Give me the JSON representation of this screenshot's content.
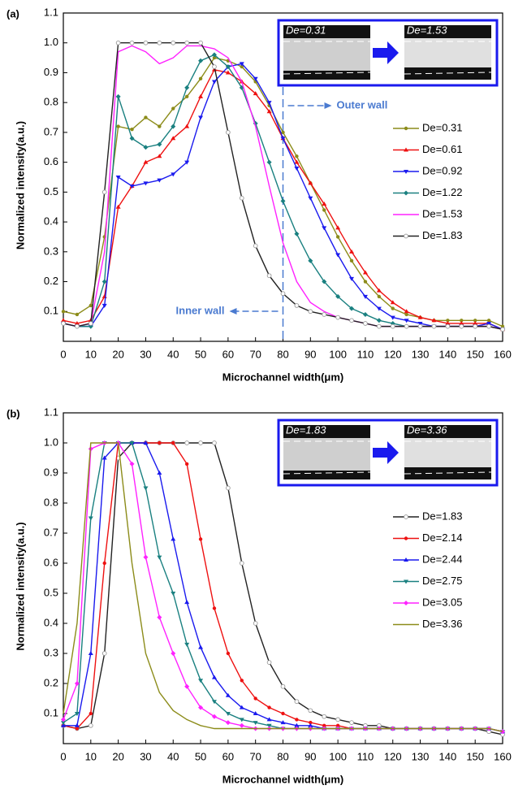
{
  "chart_data": [
    {
      "type": "line",
      "panel_label": "(a)",
      "xlabel": "Microchannel width(μm)",
      "ylabel": "Normalized intensity(a.u.)",
      "xlim": [
        0,
        160
      ],
      "xticks": [
        0,
        10,
        20,
        30,
        40,
        50,
        60,
        70,
        80,
        90,
        100,
        110,
        120,
        130,
        140,
        150,
        160
      ],
      "ylim": [
        0,
        1.1
      ],
      "yticks": [
        0.1,
        0.2,
        0.3,
        0.4,
        0.5,
        0.6,
        0.7,
        0.8,
        0.9,
        {
          "value": 1,
          "label": "1.0"
        },
        1.1
      ],
      "inset_labels": [
        "De=0.31",
        "De=1.53"
      ],
      "annotations": [
        "Outer wall",
        "Inner wall"
      ],
      "x": [
        0,
        5,
        10,
        15,
        20,
        25,
        30,
        35,
        40,
        45,
        50,
        55,
        60,
        65,
        70,
        75,
        80,
        85,
        90,
        95,
        100,
        105,
        110,
        115,
        120,
        125,
        130,
        135,
        140,
        145,
        150,
        155,
        160
      ],
      "series": [
        {
          "name": "De=0.31",
          "color": "#8c8c1a",
          "marker": "circle",
          "values": [
            0.1,
            0.09,
            0.12,
            0.35,
            0.72,
            0.71,
            0.75,
            0.72,
            0.78,
            0.82,
            0.88,
            0.95,
            0.94,
            0.92,
            0.87,
            0.79,
            0.7,
            0.62,
            0.53,
            0.44,
            0.35,
            0.27,
            0.2,
            0.15,
            0.11,
            0.09,
            0.08,
            0.07,
            0.07,
            0.07,
            0.07,
            0.07,
            0.05
          ]
        },
        {
          "name": "De=0.61",
          "color": "#ee1111",
          "marker": "triangle",
          "values": [
            0.07,
            0.06,
            0.07,
            0.15,
            0.45,
            0.52,
            0.6,
            0.62,
            0.68,
            0.72,
            0.82,
            0.91,
            0.9,
            0.87,
            0.83,
            0.77,
            0.68,
            0.6,
            0.53,
            0.46,
            0.38,
            0.3,
            0.23,
            0.17,
            0.13,
            0.1,
            0.08,
            0.07,
            0.06,
            0.06,
            0.06,
            0.06,
            0.04
          ]
        },
        {
          "name": "De=0.92",
          "color": "#1a1aee",
          "marker": "triangle-down",
          "values": [
            0.06,
            0.05,
            0.05,
            0.12,
            0.55,
            0.52,
            0.53,
            0.54,
            0.56,
            0.6,
            0.75,
            0.87,
            0.92,
            0.93,
            0.88,
            0.8,
            0.68,
            0.58,
            0.48,
            0.38,
            0.29,
            0.21,
            0.15,
            0.11,
            0.08,
            0.07,
            0.06,
            0.05,
            0.05,
            0.05,
            0.05,
            0.06,
            0.04
          ]
        },
        {
          "name": "De=1.22",
          "color": "#1a8080",
          "marker": "diamond",
          "values": [
            0.06,
            0.05,
            0.05,
            0.2,
            0.82,
            0.68,
            0.65,
            0.66,
            0.72,
            0.85,
            0.94,
            0.96,
            0.92,
            0.85,
            0.73,
            0.6,
            0.47,
            0.36,
            0.27,
            0.2,
            0.15,
            0.11,
            0.09,
            0.07,
            0.06,
            0.05,
            0.05,
            0.05,
            0.05,
            0.05,
            0.05,
            0.05,
            0.04
          ]
        },
        {
          "name": "De=1.53",
          "color": "#ff22ff",
          "marker": "none",
          "values": [
            0.06,
            0.05,
            0.06,
            0.3,
            0.97,
            0.99,
            0.97,
            0.93,
            0.95,
            0.99,
            0.99,
            0.98,
            0.95,
            0.87,
            0.72,
            0.52,
            0.33,
            0.2,
            0.13,
            0.1,
            0.08,
            0.07,
            0.06,
            0.05,
            0.05,
            0.05,
            0.05,
            0.05,
            0.05,
            0.05,
            0.05,
            0.05,
            0.04
          ]
        },
        {
          "name": "De=1.83",
          "color": "#222222",
          "marker": "open-circle",
          "values": [
            0.06,
            0.05,
            0.06,
            0.5,
            1.0,
            1.0,
            1.0,
            1.0,
            1.0,
            1.0,
            1.0,
            0.92,
            0.7,
            0.48,
            0.32,
            0.22,
            0.16,
            0.12,
            0.1,
            0.09,
            0.08,
            0.07,
            0.06,
            0.05,
            0.05,
            0.05,
            0.05,
            0.05,
            0.05,
            0.05,
            0.05,
            0.05,
            0.04
          ]
        }
      ]
    },
    {
      "type": "line",
      "panel_label": "(b)",
      "xlabel": "Microchannel width(μm)",
      "ylabel": "Normalized intensity(a.u.)",
      "xlim": [
        0,
        160
      ],
      "xticks": [
        0,
        10,
        20,
        30,
        40,
        50,
        60,
        70,
        80,
        90,
        100,
        110,
        120,
        130,
        140,
        150,
        160
      ],
      "ylim": [
        0,
        1.1
      ],
      "yticks": [
        0.1,
        0.2,
        0.3,
        0.4,
        0.5,
        0.6,
        0.7,
        0.8,
        0.9,
        {
          "value": 1,
          "label": "1.0"
        },
        1.1
      ],
      "inset_labels": [
        "De=1.83",
        "De=3.36"
      ],
      "x": [
        0,
        5,
        10,
        15,
        20,
        25,
        30,
        35,
        40,
        45,
        50,
        55,
        60,
        65,
        70,
        75,
        80,
        85,
        90,
        95,
        100,
        105,
        110,
        115,
        120,
        125,
        130,
        135,
        140,
        145,
        150,
        155,
        160
      ],
      "series": [
        {
          "name": "De=1.83",
          "color": "#222222",
          "marker": "open-circle",
          "values": [
            0.06,
            0.05,
            0.06,
            0.3,
            0.95,
            1.0,
            1.0,
            1.0,
            1.0,
            1.0,
            1.0,
            1.0,
            0.85,
            0.6,
            0.4,
            0.27,
            0.19,
            0.14,
            0.11,
            0.09,
            0.08,
            0.07,
            0.06,
            0.06,
            0.05,
            0.05,
            0.05,
            0.05,
            0.05,
            0.05,
            0.05,
            0.04,
            0.03
          ]
        },
        {
          "name": "De=2.14",
          "color": "#ee1111",
          "marker": "circle",
          "values": [
            0.06,
            0.05,
            0.1,
            0.6,
            1.0,
            1.0,
            1.0,
            1.0,
            1.0,
            0.93,
            0.68,
            0.45,
            0.3,
            0.21,
            0.15,
            0.12,
            0.1,
            0.08,
            0.07,
            0.06,
            0.06,
            0.05,
            0.05,
            0.05,
            0.05,
            0.05,
            0.05,
            0.05,
            0.05,
            0.05,
            0.05,
            0.05,
            0.04
          ]
        },
        {
          "name": "De=2.44",
          "color": "#1a1aee",
          "marker": "triangle",
          "values": [
            0.06,
            0.06,
            0.3,
            0.95,
            1.0,
            1.0,
            1.0,
            0.9,
            0.68,
            0.47,
            0.32,
            0.22,
            0.16,
            0.12,
            0.1,
            0.08,
            0.07,
            0.06,
            0.06,
            0.05,
            0.05,
            0.05,
            0.05,
            0.05,
            0.05,
            0.05,
            0.05,
            0.05,
            0.05,
            0.05,
            0.05,
            0.05,
            0.04
          ]
        },
        {
          "name": "De=2.75",
          "color": "#1a8080",
          "marker": "triangle-down",
          "values": [
            0.07,
            0.1,
            0.75,
            1.0,
            1.0,
            1.0,
            0.85,
            0.62,
            0.5,
            0.33,
            0.21,
            0.14,
            0.1,
            0.08,
            0.07,
            0.06,
            0.05,
            0.05,
            0.05,
            0.05,
            0.05,
            0.05,
            0.05,
            0.05,
            0.05,
            0.05,
            0.05,
            0.05,
            0.05,
            0.05,
            0.05,
            0.05,
            0.04
          ]
        },
        {
          "name": "De=3.05",
          "color": "#ff22ff",
          "marker": "diamond",
          "values": [
            0.08,
            0.2,
            0.98,
            1.0,
            1.0,
            0.93,
            0.62,
            0.42,
            0.3,
            0.19,
            0.12,
            0.09,
            0.07,
            0.06,
            0.05,
            0.05,
            0.05,
            0.05,
            0.05,
            0.05,
            0.05,
            0.05,
            0.05,
            0.05,
            0.05,
            0.05,
            0.05,
            0.05,
            0.05,
            0.05,
            0.05,
            0.05,
            0.04
          ]
        },
        {
          "name": "De=3.36",
          "color": "#8c8c1a",
          "marker": "none",
          "values": [
            0.1,
            0.4,
            1.0,
            1.0,
            1.0,
            0.6,
            0.3,
            0.17,
            0.11,
            0.08,
            0.06,
            0.05,
            0.05,
            0.05,
            0.05,
            0.05,
            0.05,
            0.05,
            0.05,
            0.05,
            0.05,
            0.05,
            0.05,
            0.05,
            0.05,
            0.05,
            0.05,
            0.05,
            0.05,
            0.05,
            0.05,
            0.05,
            0.04
          ]
        }
      ]
    }
  ]
}
